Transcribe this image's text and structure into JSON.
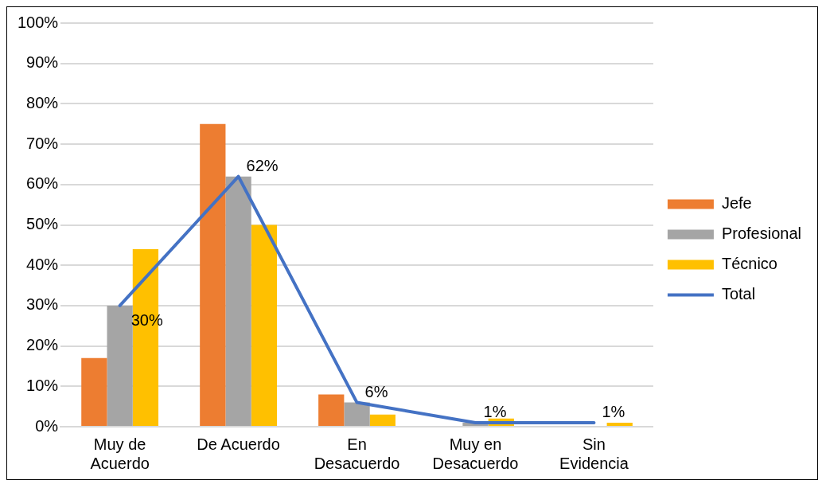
{
  "chart_data": {
    "type": "bar",
    "categories": [
      "Muy de Acuerdo",
      "De Acuerdo",
      "En Desacuerdo",
      "Muy en Desacuerdo",
      "Sin Evidencia"
    ],
    "series": [
      {
        "name": "Jefe",
        "color": "#ed7d31",
        "values": [
          17,
          75,
          8,
          0,
          0
        ]
      },
      {
        "name": "Profesional",
        "color": "#a5a5a5",
        "values": [
          30,
          62,
          6,
          1,
          0
        ]
      },
      {
        "name": "Técnico",
        "color": "#ffc000",
        "values": [
          44,
          50,
          3,
          2,
          1
        ]
      },
      {
        "name": "Total",
        "type": "line",
        "color": "#4472c4",
        "values": [
          30,
          62,
          6,
          1,
          1
        ],
        "value_labels": [
          "30%",
          "62%",
          "6%",
          "1%",
          "1%"
        ]
      }
    ],
    "ylim": [
      0,
      100
    ],
    "yticks": [
      {
        "value": 0,
        "label": "0%"
      },
      {
        "value": 10,
        "label": "10%"
      },
      {
        "value": 20,
        "label": "20%"
      },
      {
        "value": 30,
        "label": "30%"
      },
      {
        "value": 40,
        "label": "40%"
      },
      {
        "value": 50,
        "label": "50%"
      },
      {
        "value": 60,
        "label": "60%"
      },
      {
        "value": 70,
        "label": "70%"
      },
      {
        "value": 80,
        "label": "80%"
      },
      {
        "value": 90,
        "label": "90%"
      },
      {
        "value": 100,
        "label": "100%"
      }
    ],
    "grid": "y",
    "legend": "right",
    "marker": "none"
  }
}
